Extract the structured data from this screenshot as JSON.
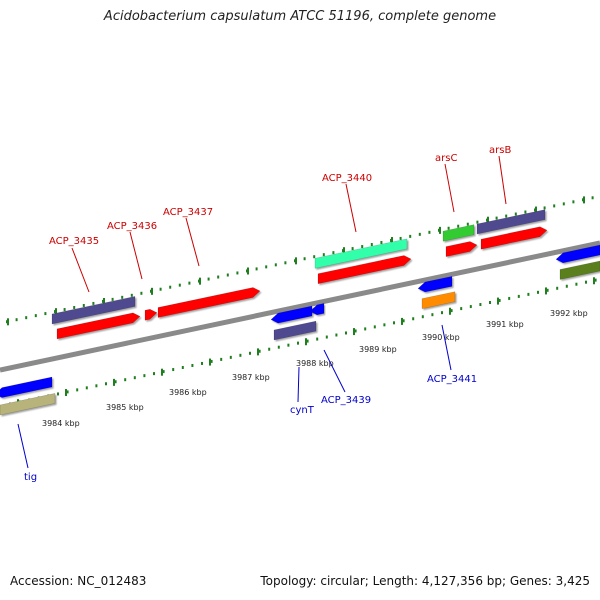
{
  "title": "Acidobacterium capsulatum ATCC 51196, complete genome",
  "footer": {
    "accession": "Accession: NC_012483",
    "topology": "Topology: circular; Length: 4,127,356 bp; Genes: 3,425"
  },
  "colors": {
    "red": "#ff0000",
    "blue": "#0000ff",
    "purple": "#4f4a8f",
    "olive": "#b7b37a",
    "teal": "#33ffaa",
    "green": "#33cc33",
    "orange": "#ff8c00",
    "darkgreen": "#5a7f1e",
    "backbone": "#8a8a8a",
    "tick": "#1f7f1f",
    "label_red": "#cc0000",
    "label_blue": "#0000cc"
  },
  "ticks": [
    {
      "label": "3984 kbp"
    },
    {
      "label": "3985 kbp"
    },
    {
      "label": "3986 kbp"
    },
    {
      "label": "3987 kbp"
    },
    {
      "label": "3988 kbp"
    },
    {
      "label": "3989 kbp"
    },
    {
      "label": "3990 kbp"
    },
    {
      "label": "3991 kbp"
    },
    {
      "label": "3992 kbp"
    }
  ],
  "genes": [
    {
      "label": "ACP_3435",
      "strand": "forward"
    },
    {
      "label": "ACP_3436",
      "strand": "forward"
    },
    {
      "label": "ACP_3437",
      "strand": "forward"
    },
    {
      "label": "ACP_3440",
      "strand": "forward"
    },
    {
      "label": "arsC",
      "strand": "forward"
    },
    {
      "label": "arsB",
      "strand": "forward"
    },
    {
      "label": "tig",
      "strand": "reverse"
    },
    {
      "label": "cynT",
      "strand": "reverse"
    },
    {
      "label": "ACP_3439",
      "strand": "reverse"
    },
    {
      "label": "ACP_3441",
      "strand": "reverse"
    }
  ]
}
